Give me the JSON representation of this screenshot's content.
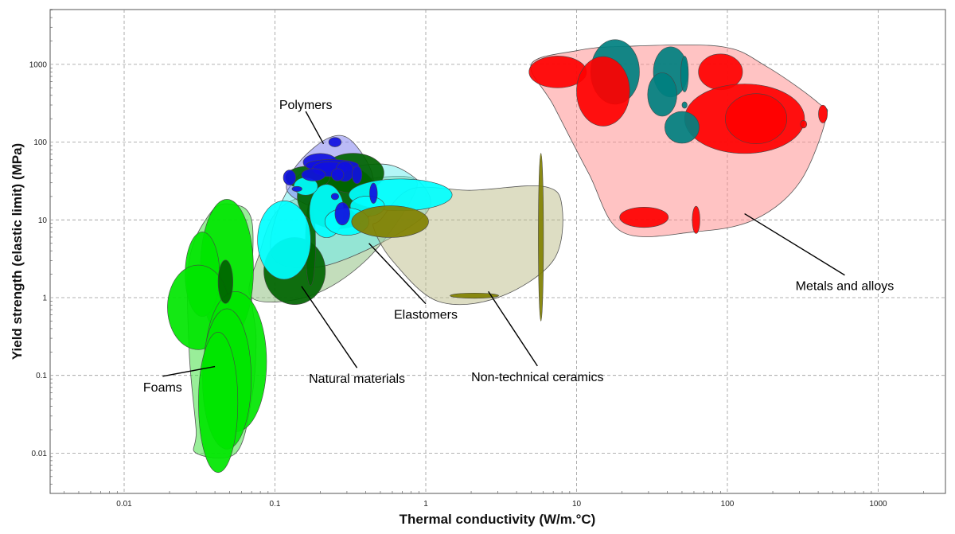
{
  "chart_data": {
    "type": "scatter",
    "subtype": "material-property-bubble-chart",
    "xlabel": "Thermal conductivity (W/m.°C)",
    "ylabel": "Yield strength (elastic limit) (MPa)",
    "x_scale": "log",
    "y_scale": "log",
    "xlim": [
      0.003,
      3000
    ],
    "ylim": [
      0.003,
      5000
    ],
    "grid": true,
    "x_ticks": [
      {
        "v": 0.01,
        "label": "0.01"
      },
      {
        "v": 0.1,
        "label": "0.1"
      },
      {
        "v": 1,
        "label": "1"
      },
      {
        "v": 10,
        "label": "10"
      },
      {
        "v": 100,
        "label": "100"
      },
      {
        "v": 1000,
        "label": "1000"
      }
    ],
    "y_ticks": [
      {
        "v": 0.01,
        "label": "0.01"
      },
      {
        "v": 0.1,
        "label": "0.1"
      },
      {
        "v": 1,
        "label": "1"
      },
      {
        "v": 10,
        "label": "10"
      },
      {
        "v": 100,
        "label": "100"
      },
      {
        "v": 1000,
        "label": "1000"
      }
    ],
    "families": [
      {
        "key": "foams",
        "label": "Foams",
        "fill": "#33dd33",
        "bubble": "#00e600",
        "envelope": [
          [
            0.03,
            0.01
          ],
          [
            0.055,
            0.01
          ],
          [
            0.07,
            0.05
          ],
          [
            0.075,
            0.3
          ],
          [
            0.07,
            1
          ],
          [
            0.07,
            10
          ],
          [
            0.05,
            16
          ],
          [
            0.037,
            12
          ],
          [
            0.027,
            3
          ],
          [
            0.027,
            0.2
          ],
          [
            0.03,
            0.02
          ]
        ],
        "bubbles": [
          {
            "x": 0.048,
            "y": 2.3,
            "wx": 1.5,
            "hy": 8
          },
          {
            "x": 0.033,
            "y": 2.0,
            "wx": 1.3,
            "hy": 3.5
          },
          {
            "x": 0.031,
            "y": 0.75,
            "wx": 1.6,
            "hy": 3.5
          },
          {
            "x": 0.055,
            "y": 0.15,
            "wx": 1.6,
            "hy": 8
          },
          {
            "x": 0.048,
            "y": 0.09,
            "wx": 1.45,
            "hy": 8
          },
          {
            "x": 0.042,
            "y": 0.045,
            "wx": 1.35,
            "hy": 8
          },
          {
            "x": 0.047,
            "y": 1.6,
            "wx": 1.12,
            "hy": 1.9,
            "color": "#006400"
          }
        ]
      },
      {
        "key": "natural",
        "label": "Natural materials",
        "fill": "#88bb77",
        "bubble": "#006400",
        "envelope": [
          [
            0.07,
            1
          ],
          [
            0.17,
            1.05
          ],
          [
            0.4,
            3
          ],
          [
            0.8,
            18
          ],
          [
            0.8,
            35
          ],
          [
            0.35,
            32
          ],
          [
            0.15,
            20
          ],
          [
            0.1,
            12
          ],
          [
            0.08,
            4
          ]
        ],
        "bubbles": [
          {
            "x": 0.135,
            "y": 2.2,
            "wx": 1.6,
            "hy": 2.7
          },
          {
            "x": 0.172,
            "y": 5,
            "wx": 1.08,
            "hy": 3.5
          },
          {
            "x": 0.26,
            "y": 20,
            "wx": 1.85,
            "hy": 2.6
          },
          {
            "x": 0.33,
            "y": 40,
            "wx": 1.6,
            "hy": 1.8
          },
          {
            "x": 0.165,
            "y": 35,
            "wx": 1.4,
            "hy": 1.4
          }
        ]
      },
      {
        "key": "elastomers",
        "label": "Elastomers",
        "fill": "#66eeee",
        "bubble": "#00ffff",
        "envelope": [
          [
            0.1,
            3
          ],
          [
            0.2,
            2.5
          ],
          [
            0.5,
            5
          ],
          [
            1,
            12
          ],
          [
            1,
            25
          ],
          [
            0.6,
            50
          ],
          [
            0.3,
            48
          ],
          [
            0.15,
            40
          ],
          [
            0.1,
            10
          ]
        ],
        "bubbles": [
          {
            "x": 0.115,
            "y": 5.5,
            "wx": 1.5,
            "hy": 3.2
          },
          {
            "x": 0.22,
            "y": 13,
            "wx": 1.3,
            "hy": 2.2
          },
          {
            "x": 0.68,
            "y": 21,
            "wx": 2.2,
            "hy": 1.6
          },
          {
            "x": 0.41,
            "y": 15,
            "wx": 1.3,
            "hy": 1.35
          },
          {
            "x": 0.3,
            "y": 9.5,
            "wx": 1.4,
            "hy": 1.5
          },
          {
            "x": 0.16,
            "y": 27,
            "wx": 1.2,
            "hy": 1.3
          }
        ]
      },
      {
        "key": "polymers",
        "label": "Polymers",
        "fill": "#7777ee",
        "bubble": "#1010e0",
        "envelope": [
          [
            0.12,
            30
          ],
          [
            0.15,
            60
          ],
          [
            0.22,
            110
          ],
          [
            0.3,
            115
          ],
          [
            0.4,
            60
          ],
          [
            0.45,
            30
          ],
          [
            0.4,
            15
          ],
          [
            0.35,
            10
          ],
          [
            0.26,
            10
          ],
          [
            0.2,
            13
          ],
          [
            0.13,
            20
          ]
        ],
        "bubbles": [
          {
            "x": 0.25,
            "y": 100,
            "wx": 1.1,
            "hy": 1.15
          },
          {
            "x": 0.2,
            "y": 55,
            "wx": 1.3,
            "hy": 1.3
          },
          {
            "x": 0.24,
            "y": 50,
            "wx": 1.5,
            "hy": 1.2
          },
          {
            "x": 0.23,
            "y": 45,
            "wx": 1.3,
            "hy": 1.25
          },
          {
            "x": 0.29,
            "y": 42,
            "wx": 1.15,
            "hy": 1.35
          },
          {
            "x": 0.125,
            "y": 35,
            "wx": 1.1,
            "hy": 1.25
          },
          {
            "x": 0.18,
            "y": 38,
            "wx": 1.2,
            "hy": 1.2
          },
          {
            "x": 0.26,
            "y": 38,
            "wx": 1.1,
            "hy": 1.2
          },
          {
            "x": 0.35,
            "y": 38,
            "wx": 1.08,
            "hy": 1.3
          },
          {
            "x": 0.45,
            "y": 22,
            "wx": 1.06,
            "hy": 1.35
          },
          {
            "x": 0.28,
            "y": 12,
            "wx": 1.12,
            "hy": 1.4
          },
          {
            "x": 0.25,
            "y": 20,
            "wx": 1.06,
            "hy": 1.1
          },
          {
            "x": 0.14,
            "y": 25,
            "wx": 1.08,
            "hy": 1.08
          }
        ]
      },
      {
        "key": "ceramics",
        "label": "Non-technical ceramics",
        "fill": "#bbbb88",
        "bubble": "#808000",
        "envelope": [
          [
            0.5,
            10
          ],
          [
            0.8,
            25
          ],
          [
            2,
            24
          ],
          [
            6,
            27
          ],
          [
            8,
            15
          ],
          [
            7,
            3
          ],
          [
            3,
            1.0
          ],
          [
            1.2,
            0.9
          ],
          [
            0.6,
            3
          ],
          [
            0.45,
            8
          ]
        ],
        "bubbles": [
          {
            "x": 0.58,
            "y": 9.5,
            "wx": 1.8,
            "hy": 1.6
          },
          {
            "x": 5.8,
            "y": 6,
            "wx": 1.04,
            "hy": 12
          },
          {
            "x": 2.1,
            "y": 1.06,
            "wx": 1.45,
            "hy": 1.08
          }
        ]
      },
      {
        "key": "metals",
        "label": "Metals and alloys",
        "fill": "#ff8888",
        "bubble": "#ff0000",
        "envelope": [
          [
            5,
            1000
          ],
          [
            10,
            1500
          ],
          [
            20,
            1700
          ],
          [
            90,
            1700
          ],
          [
            180,
            950
          ],
          [
            400,
            320
          ],
          [
            450,
            200
          ],
          [
            300,
            30
          ],
          [
            150,
            10
          ],
          [
            60,
            7
          ],
          [
            20,
            7
          ],
          [
            12,
            40
          ],
          [
            7,
            300
          ]
        ],
        "bubbles": [
          {
            "x": 7.5,
            "y": 800,
            "wx": 1.55,
            "hy": 1.6
          },
          {
            "x": 18,
            "y": 800,
            "wx": 1.45,
            "hy": 2.6,
            "color": "#008080"
          },
          {
            "x": 15,
            "y": 450,
            "wx": 1.5,
            "hy": 2.8
          },
          {
            "x": 42,
            "y": 800,
            "wx": 1.3,
            "hy": 2.1,
            "color": "#008080"
          },
          {
            "x": 52,
            "y": 750,
            "wx": 1.06,
            "hy": 1.7,
            "color": "#008080"
          },
          {
            "x": 37,
            "y": 410,
            "wx": 1.25,
            "hy": 1.9,
            "color": "#008080"
          },
          {
            "x": 52,
            "y": 300,
            "wx": 1.04,
            "hy": 1.1,
            "color": "#008080"
          },
          {
            "x": 90,
            "y": 800,
            "wx": 1.4,
            "hy": 1.7
          },
          {
            "x": 130,
            "y": 200,
            "wx": 2.5,
            "hy": 2.8
          },
          {
            "x": 155,
            "y": 200,
            "wx": 1.6,
            "hy": 2.1
          },
          {
            "x": 50,
            "y": 155,
            "wx": 1.3,
            "hy": 1.6,
            "color": "#008080"
          },
          {
            "x": 320,
            "y": 170,
            "wx": 1.05,
            "hy": 1.12
          },
          {
            "x": 430,
            "y": 230,
            "wx": 1.07,
            "hy": 1.3
          },
          {
            "x": 28,
            "y": 10.8,
            "wx": 1.45,
            "hy": 1.35
          },
          {
            "x": 62,
            "y": 10,
            "wx": 1.06,
            "hy": 1.5
          }
        ]
      }
    ],
    "annotations": [
      {
        "key": "polymers",
        "text": "Polymers",
        "lx": 0.16,
        "ly": 300,
        "ax": 0.21,
        "ay": 95,
        "anchor": "middle"
      },
      {
        "key": "foams",
        "text": "Foams",
        "lx": 0.018,
        "ly": 0.07,
        "ax": 0.04,
        "ay": 0.13,
        "anchor": "middle"
      },
      {
        "key": "natural",
        "text": "Natural materials",
        "lx": 0.35,
        "ly": 0.09,
        "ax": 0.15,
        "ay": 1.4,
        "anchor": "middle"
      },
      {
        "key": "elastomers",
        "text": "Elastomers",
        "lx": 1.0,
        "ly": 0.6,
        "ax": 0.42,
        "ay": 5,
        "anchor": "middle"
      },
      {
        "key": "ceramics",
        "text": "Non-technical ceramics",
        "lx": 5.5,
        "ly": 0.095,
        "ax": 2.6,
        "ay": 1.2,
        "anchor": "middle"
      },
      {
        "key": "metals",
        "text": "Metals and alloys",
        "lx": 600,
        "ly": 1.4,
        "ax": 130,
        "ay": 12,
        "anchor": "middle"
      }
    ]
  }
}
